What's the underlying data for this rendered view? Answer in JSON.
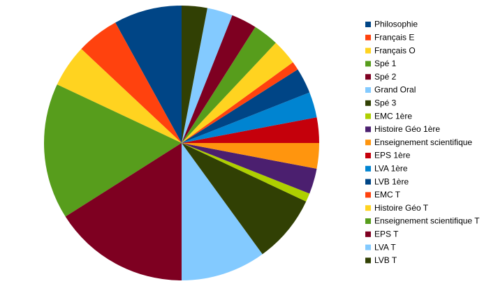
{
  "chart_data": {
    "type": "pie",
    "categories": [
      "Philosophie",
      "Français E",
      "Français O",
      "Spé 1",
      "Spé 2",
      "Grand Oral",
      "Spé 3",
      "EMC 1ère",
      "Histoire Géo 1ère",
      "Enseignement scientifique",
      "EPS 1ère",
      "LVA 1ère",
      "LVB 1ère",
      "EMC T",
      "Histoire Géo T",
      "Enseignement scientifique T",
      "EPS T",
      "LVA T",
      "LVB T"
    ],
    "values": [
      8,
      5,
      5,
      16,
      16,
      10,
      8,
      1,
      3,
      3,
      3,
      3,
      3,
      1,
      3,
      3,
      3,
      3,
      3
    ],
    "colors": [
      "#004586",
      "#ff420e",
      "#ffd320",
      "#579d1c",
      "#7e0021",
      "#83caff",
      "#314004",
      "#aecf00",
      "#4b1f6f",
      "#ff950e",
      "#c5000b",
      "#0084d1",
      "#004586",
      "#ff420e",
      "#ffd320",
      "#579d1c",
      "#7e0021",
      "#83caff",
      "#314004"
    ],
    "legend": "right"
  }
}
